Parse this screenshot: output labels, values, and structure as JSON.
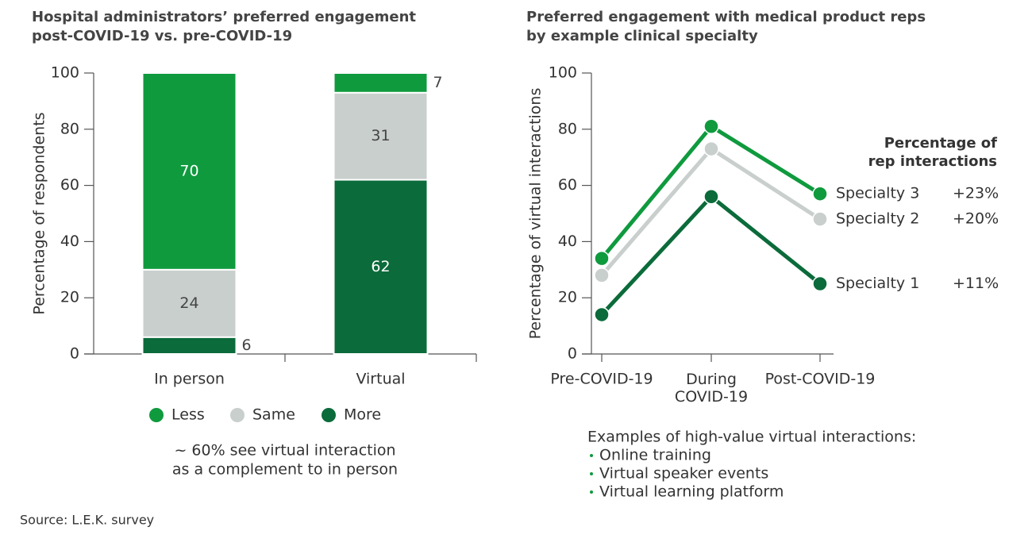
{
  "chart_data": [
    {
      "type": "stacked_bar",
      "title": [
        "Hospital administrators’ preferred engagement",
        "post-COVID-19 vs. pre-COVID-19"
      ],
      "y_label": "Percentage of respondents",
      "categories": [
        "In person",
        "Virtual"
      ],
      "series": [
        {
          "name": "More",
          "color": "#0b6b3a",
          "values": [
            6,
            62
          ]
        },
        {
          "name": "Same",
          "color": "#c9cfcd",
          "values": [
            24,
            31
          ]
        },
        {
          "name": "Less",
          "color": "#0f9a3e",
          "values": [
            70,
            7
          ]
        }
      ],
      "legend_order": [
        "Less",
        "Same",
        "More"
      ],
      "ylim": [
        0,
        100
      ],
      "yticks": [
        0,
        20,
        40,
        60,
        80,
        100
      ],
      "annotation": [
        "~ 60% see virtual interaction",
        "as a complement to in person"
      ]
    },
    {
      "type": "line",
      "title": [
        "Preferred engagement with medical product reps",
        "by example clinical specialty"
      ],
      "y_label": "Percentage of virtual interactions",
      "categories": [
        "Pre-COVID-19",
        "During COVID-19",
        "Post-COVID-19"
      ],
      "series": [
        {
          "name": "Specialty 1",
          "color": "#0b6b3a",
          "values": [
            14,
            56,
            25
          ],
          "change": "+11%"
        },
        {
          "name": "Specialty 2",
          "color": "#c9cfcd",
          "values": [
            28,
            73,
            48
          ],
          "change": "+20%"
        },
        {
          "name": "Specialty 3",
          "color": "#0f9a3e",
          "values": [
            34,
            81,
            57
          ],
          "change": "+23%"
        }
      ],
      "legend_title": [
        "Percentage of",
        "rep interactions"
      ],
      "ylim": [
        0,
        100
      ],
      "yticks": [
        0,
        20,
        40,
        60,
        80,
        100
      ],
      "examples_title": "Examples of high-value virtual interactions:",
      "examples": [
        "Online training",
        "Virtual speaker events",
        "Virtual learning platform"
      ]
    }
  ],
  "source": "Source: L.E.K. survey"
}
